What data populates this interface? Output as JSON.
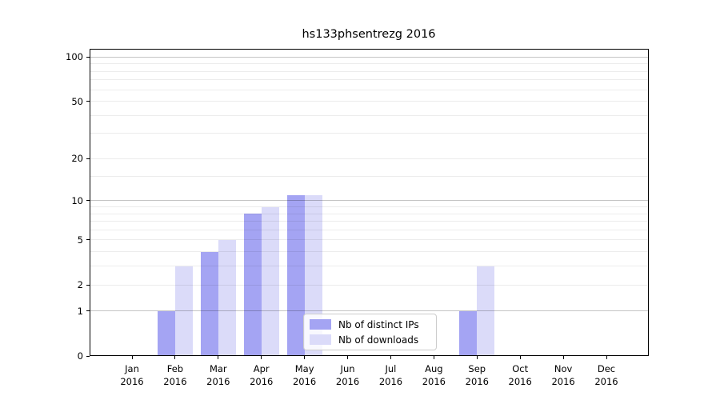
{
  "chart_data": {
    "type": "bar",
    "title": "hs133phsentrezg 2016",
    "categories": [
      "Jan 2016",
      "Feb 2016",
      "Mar 2016",
      "Apr 2016",
      "May 2016",
      "Jun 2016",
      "Jul 2016",
      "Aug 2016",
      "Sep 2016",
      "Oct 2016",
      "Nov 2016",
      "Dec 2016"
    ],
    "x_axis": {
      "months": [
        "Jan",
        "Feb",
        "Mar",
        "Apr",
        "May",
        "Jun",
        "Jul",
        "Aug",
        "Sep",
        "Oct",
        "Nov",
        "Dec"
      ],
      "year": "2016"
    },
    "series": [
      {
        "name": "Nb of distinct IPs",
        "color": "#a4a4f3",
        "values": [
          0,
          1,
          4,
          8,
          11,
          0,
          0,
          0,
          1,
          0,
          0,
          0
        ]
      },
      {
        "name": "Nb of downloads",
        "color": "#dbdbf9",
        "values": [
          0,
          3,
          5,
          9,
          11,
          0,
          0,
          0,
          3,
          0,
          0,
          0
        ]
      }
    ],
    "xlabel": "",
    "ylabel": "",
    "y_scale": "log1p",
    "ylim": [
      0,
      113
    ],
    "y_ticks": [
      0,
      1,
      2,
      5,
      10,
      20,
      50,
      100
    ],
    "y_tick_labels": [
      "0",
      "1",
      "2",
      "5",
      "10",
      "20",
      "50",
      "100"
    ],
    "y_major_grid_values": [
      1,
      10,
      100
    ],
    "y_minor_grid_values": [
      3,
      4,
      6,
      7,
      8,
      9,
      15,
      30,
      40,
      60,
      70,
      80,
      90
    ],
    "grid": "horizontal",
    "legend": {
      "entries": [
        "Nb of distinct IPs",
        "Nb of downloads"
      ],
      "position": "lower center"
    },
    "colors": {
      "grid_major": "rgba(0,0,0,0.23)",
      "grid_minor": "rgba(0,0,0,0.075)",
      "spine": "#000000",
      "background": "#ffffff"
    }
  }
}
